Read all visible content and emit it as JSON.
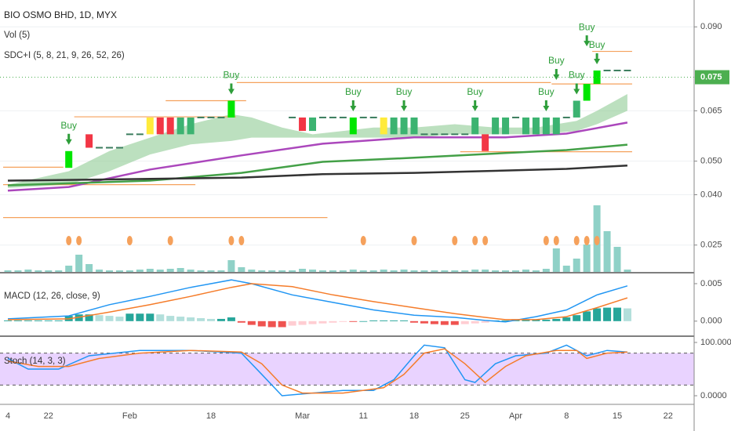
{
  "chart_data": [
    {
      "type": "candlestick",
      "title": "BIO OSMO BHD, 1D, MYX",
      "indicators": [
        "Vol (5)",
        "SDC+I (5, 8, 21, 9, 26, 52, 26)"
      ],
      "categories": [
        "4",
        null,
        null,
        null,
        "22",
        null,
        null,
        null,
        null,
        null,
        null,
        null,
        "Feb",
        null,
        null,
        null,
        null,
        null,
        null,
        null,
        "18",
        null,
        null,
        null,
        null,
        null,
        null,
        null,
        null,
        "Mar",
        null,
        null,
        null,
        null,
        null,
        "11",
        null,
        null,
        null,
        null,
        "18",
        null,
        null,
        null,
        null,
        "25",
        null,
        null,
        null,
        null,
        "Apr",
        null,
        null,
        null,
        null,
        "8",
        null,
        null,
        null,
        null,
        "15",
        null,
        null,
        null,
        null,
        "22"
      ],
      "open": [
        null,
        null,
        null,
        null,
        null,
        null,
        0.048,
        null,
        0.058,
        0.054,
        0.054,
        0.054,
        0.058,
        0.058,
        0.058,
        0.063,
        0.063,
        0.058,
        0.058,
        0.063,
        0.063,
        0.063,
        0.063,
        null,
        null,
        null,
        null,
        null,
        0.063,
        0.063,
        0.059,
        0.063,
        0.063,
        0.063,
        0.058,
        0.063,
        0.063,
        0.058,
        0.058,
        0.058,
        0.058,
        0.058,
        0.058,
        0.058,
        0.058,
        0.058,
        0.058,
        0.058,
        0.058,
        0.058,
        0.063,
        0.058,
        0.058,
        0.058,
        0.058,
        0.063,
        0.063,
        0.068,
        0.073,
        0.077,
        0.077,
        0.077,
        null,
        null,
        null,
        null
      ],
      "close": [
        null,
        null,
        null,
        null,
        null,
        null,
        0.053,
        null,
        0.054,
        0.054,
        0.054,
        0.054,
        0.058,
        0.058,
        0.063,
        0.058,
        0.058,
        0.063,
        0.063,
        0.063,
        0.063,
        0.063,
        0.068,
        null,
        null,
        null,
        null,
        null,
        0.063,
        0.059,
        0.063,
        0.063,
        0.063,
        0.063,
        0.063,
        0.063,
        0.063,
        0.063,
        0.063,
        0.063,
        0.063,
        0.058,
        0.058,
        0.058,
        0.058,
        0.058,
        0.063,
        0.053,
        0.063,
        0.063,
        0.063,
        0.063,
        0.063,
        0.063,
        0.063,
        0.063,
        0.068,
        0.073,
        0.077,
        0.077,
        0.077,
        0.077,
        null,
        null,
        null,
        null
      ],
      "bar_colors": [
        null,
        null,
        null,
        null,
        null,
        null,
        "#00e600",
        null,
        "#f23645",
        "#3b7d5e",
        "#3b7d5e",
        "#3b7d5e",
        "#3b7d5e",
        "#3b7d5e",
        "#ffeb3b",
        "#f23645",
        "#f23645",
        "#3cb371",
        "#3cb371",
        "#3b7d5e",
        "#3b7d5e",
        "#3b7d5e",
        "#00e600",
        null,
        null,
        null,
        null,
        null,
        "#3b7d5e",
        "#f23645",
        "#3cb371",
        "#3b7d5e",
        "#3b7d5e",
        "#3b7d5e",
        "#00e600",
        "#3b7d5e",
        "#3b7d5e",
        "#ffeb3b",
        "#3cb371",
        "#3cb371",
        "#3cb371",
        "#3b7d5e",
        "#3b7d5e",
        "#3b7d5e",
        "#3b7d5e",
        "#3b7d5e",
        "#3cb371",
        "#f23645",
        "#3cb371",
        "#3cb371",
        "#3b7d5e",
        "#3cb371",
        "#3cb371",
        "#3cb371",
        "#3cb371",
        "#3b7d5e",
        "#3cb371",
        "#00e600",
        "#00e600",
        "#3b7d5e",
        "#3b7d5e",
        "#3b7d5e",
        null,
        null,
        null,
        null
      ],
      "ylim": [
        0.017,
        0.098
      ],
      "yticks": [
        {
          "value": 0.09,
          "label": "0.090"
        },
        0.065,
        {
          "value": 0.05,
          "label": "0.050"
        },
        {
          "value": 0.04,
          "label": "0.040"
        },
        0.025
      ],
      "grid": true,
      "last_price": 0.075,
      "last_price_color": "#4caf50",
      "cloud": {
        "color": "#8fcc94",
        "x": [
          0,
          6,
          10,
          14,
          18,
          22,
          24,
          27,
          30,
          33,
          36,
          40,
          44,
          48,
          52,
          56,
          58,
          61
        ],
        "upper": [
          0.043,
          0.047,
          0.053,
          0.057,
          0.061,
          0.064,
          0.063,
          0.06,
          0.058,
          0.059,
          0.06,
          0.06,
          0.061,
          0.06,
          0.06,
          0.062,
          0.065,
          0.07
        ],
        "lower": [
          0.042,
          0.043,
          0.047,
          0.052,
          0.055,
          0.056,
          0.057,
          0.057,
          0.057,
          0.057,
          0.057,
          0.057,
          0.058,
          0.058,
          0.058,
          0.059,
          0.061,
          0.065
        ]
      },
      "moving_averages": [
        {
          "color": "#ab47bc",
          "x": [
            0,
            6,
            14,
            23,
            31,
            40,
            49,
            55,
            61
          ],
          "values": [
            0.0412,
            0.0423,
            0.0475,
            0.0517,
            0.0552,
            0.0571,
            0.0571,
            0.0582,
            0.0615
          ]
        },
        {
          "color": "#43a047",
          "x": [
            0,
            14,
            23,
            31,
            40,
            49,
            55,
            61
          ],
          "values": [
            0.0428,
            0.0442,
            0.0465,
            0.0498,
            0.051,
            0.0524,
            0.0533,
            0.0549
          ]
        },
        {
          "color": "#333333",
          "x": [
            0,
            14,
            23,
            31,
            40,
            49,
            55,
            61
          ],
          "values": [
            0.0442,
            0.0447,
            0.0451,
            0.0461,
            0.0465,
            0.0472,
            0.0477,
            0.0487
          ]
        }
      ],
      "levels_color": "#f5a15c",
      "levels": [
        {
          "from": 0,
          "to": 5,
          "value": 0.0482
        },
        {
          "from": 0,
          "to": 18,
          "value": 0.043
        },
        {
          "from": 0,
          "to": 31,
          "value": 0.0332
        },
        {
          "from": 7,
          "to": 22,
          "value": 0.0632
        },
        {
          "from": 16,
          "to": 23,
          "value": 0.068
        },
        {
          "from": 23,
          "to": 53,
          "value": 0.0734
        },
        {
          "from": 45,
          "to": 61,
          "value": 0.0528
        },
        {
          "from": 54,
          "to": 61,
          "value": 0.073
        },
        {
          "from": 58,
          "to": 61,
          "value": 0.0827
        }
      ],
      "volume": {
        "color": "#8fd1c7",
        "y2lim": [
          0,
          100
        ],
        "values": [
          2,
          2,
          3,
          2,
          2,
          2,
          8,
          22,
          10,
          3,
          2,
          2,
          2,
          3,
          4,
          3,
          4,
          5,
          3,
          2,
          2,
          2,
          15,
          6,
          3,
          2,
          2,
          2,
          2,
          4,
          3,
          2,
          2,
          2,
          3,
          2,
          2,
          3,
          2,
          3,
          2,
          2,
          2,
          2,
          2,
          2,
          3,
          3,
          2,
          2,
          2,
          3,
          2,
          4,
          30,
          8,
          17,
          35,
          85,
          52,
          32,
          3,
          null,
          null,
          null,
          null
        ]
      },
      "signals": {
        "color": "#f5a15c",
        "x": [
          6,
          7,
          12,
          16,
          22,
          23,
          35,
          40,
          44,
          46,
          47,
          53,
          54,
          56,
          57,
          58
        ]
      },
      "annotation_color": "#2e9e3a",
      "annotations": [
        {
          "text": "Buy",
          "x": 6
        },
        {
          "text": "Buy",
          "x": 22
        },
        {
          "text": "Buy",
          "x": 34
        },
        {
          "text": "Buy",
          "x": 39
        },
        {
          "text": "Buy",
          "x": 46
        },
        {
          "text": "Buy",
          "x": 53
        },
        {
          "text": "Buy",
          "x": 54
        },
        {
          "text": "Buy",
          "x": 56
        },
        {
          "text": "Buy",
          "x": 57
        },
        {
          "text": "Buy",
          "x": 58
        }
      ]
    },
    {
      "type": "macd",
      "title": "MACD (12, 26, close, 9)",
      "ylim": [
        -0.0019,
        0.00625
      ],
      "yticks": [
        0.005,
        {
          "value": 0,
          "label": "0.000"
        }
      ],
      "series": [
        {
          "color": "#2196f3",
          "x": [
            0,
            6,
            10,
            14,
            18,
            22,
            24,
            28,
            32,
            36,
            40,
            44,
            47,
            49,
            52,
            55,
            58,
            61
          ],
          "values": [
            0.0003,
            0.0007,
            0.0022,
            0.0033,
            0.0045,
            0.0055,
            0.005,
            0.0035,
            0.0025,
            0.0015,
            0.0008,
            0.0005,
            0.0001,
            -0.0001,
            0.0006,
            0.0015,
            0.0035,
            0.0047
          ]
        },
        {
          "color": "#f57c2a",
          "x": [
            0,
            6,
            10,
            14,
            18,
            22,
            24,
            28,
            32,
            36,
            40,
            44,
            47,
            49,
            52,
            55,
            58,
            61
          ],
          "values": [
            0.0002,
            0.0003,
            0.0012,
            0.0022,
            0.0033,
            0.0045,
            0.005,
            0.0046,
            0.0035,
            0.0026,
            0.0018,
            0.001,
            0.0005,
            0.0002,
            0.0002,
            0.0006,
            0.0018,
            0.0031
          ]
        }
      ],
      "histogram": [
        0.0001,
        0.0001,
        0.0001,
        0.0001,
        0.0001,
        0.0001,
        0.0007,
        0.0009,
        0.0009,
        0.0008,
        0.0007,
        0.0006,
        0.001,
        0.001,
        0.001,
        0.0009,
        0.0007,
        0.0006,
        0.0005,
        0.0004,
        0.0003,
        0.0003,
        0.0005,
        -0.0002,
        -0.0005,
        -0.0007,
        -0.0008,
        -0.0008,
        -0.0006,
        -0.0005,
        -0.0004,
        -0.0003,
        -0.0002,
        -0.0001,
        -0.0001,
        0,
        0.0001,
        0.0001,
        0.0001,
        0.0001,
        -0.0002,
        -0.0003,
        -0.0004,
        -0.0005,
        -0.0005,
        -0.0004,
        -0.0003,
        -0.0002,
        0.0001,
        0.0001,
        0.0002,
        0.0002,
        0.0002,
        0.0002,
        0.0003,
        0.0005,
        0.0008,
        0.0013,
        0.0017,
        0.0018,
        0.0018,
        0.0017,
        null,
        null,
        null,
        null
      ]
    },
    {
      "type": "stochastic",
      "title": "Stoch (14, 3, 3)",
      "ylim": [
        -14.7,
        110.3
      ],
      "yticks": [
        {
          "value": 100,
          "label": "100.0000"
        },
        {
          "value": 0,
          "label": "0.0000"
        }
      ],
      "levels": [
        20,
        80
      ],
      "band_color": "#e3c8ff",
      "series": [
        {
          "color": "#2196f3",
          "x": [
            0,
            2,
            5,
            8,
            13,
            18,
            23,
            25,
            27,
            30,
            33,
            36,
            38,
            40,
            41,
            43,
            45,
            46,
            48,
            50,
            53,
            55,
            57,
            59,
            61
          ],
          "values": [
            70,
            50,
            50,
            75,
            85,
            85,
            80,
            40,
            0,
            5,
            10,
            10,
            30,
            75,
            95,
            90,
            30,
            25,
            60,
            75,
            80,
            95,
            75,
            85,
            82
          ]
        },
        {
          "color": "#f57c2a",
          "x": [
            0,
            3,
            6,
            9,
            13,
            18,
            23,
            25,
            27,
            29,
            33,
            37,
            39,
            41,
            43,
            45,
            47,
            49,
            51,
            54,
            56,
            57,
            59,
            61
          ],
          "values": [
            65,
            55,
            55,
            70,
            80,
            85,
            82,
            60,
            20,
            5,
            5,
            15,
            40,
            80,
            88,
            60,
            25,
            55,
            75,
            85,
            85,
            70,
            80,
            82
          ]
        }
      ]
    }
  ]
}
